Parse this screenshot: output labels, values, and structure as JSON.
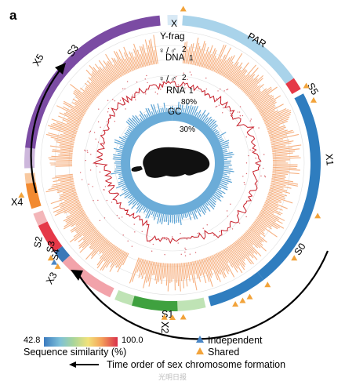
{
  "panel_letter": "a",
  "labels": {
    "x": "X",
    "y_frag": "Y-frag",
    "par": "PAR",
    "s5": "S5",
    "x1": "X1",
    "s0": "S0",
    "s1": "S1",
    "x2": "X2",
    "x3": "X3",
    "s4": "S4",
    "s3_lower": "S3",
    "s2": "S2",
    "x4": "X4",
    "x5": "X5",
    "s3_upper": "S3"
  },
  "tracks": {
    "dna": "DNA",
    "rna": "RNA",
    "gc": "GC",
    "female_symbol": "♀",
    "male_symbol": "♂",
    "slash": "/",
    "dna_scale_top": "2",
    "dna_scale_bottom": "1",
    "rna_scale_top": "2",
    "rna_scale_bottom": "1",
    "rna_pct": "80%",
    "gc_pct": "30%"
  },
  "colors": {
    "x_segment": "#d8e9f5",
    "par": "#a9d3ea",
    "x1": "#2f7dbf",
    "s1": "#3fa13f",
    "s1_light": "#bfe3b5",
    "x3": "#f2a3aa",
    "s2": "#e53948",
    "x4_orange": "#f28a30",
    "x5_purple": "#7b4ba3",
    "x5_light": "#cdb7dc",
    "dna_track": "#f5a36b",
    "rna_line": "#c8202b",
    "gc_track": "#5ba3d4",
    "platypus": "#111111",
    "triangle_independent": "#4a86c5",
    "triangle_shared": "#f2a33a"
  },
  "legend": {
    "colorbar_min": "42.8",
    "colorbar_max": "100.0",
    "colorbar_title": "Sequence similarity (%)",
    "independent": "Independent",
    "shared": "Shared",
    "arrow_text": "Time order of sex chromosome formation",
    "watermark": "光明日报"
  }
}
